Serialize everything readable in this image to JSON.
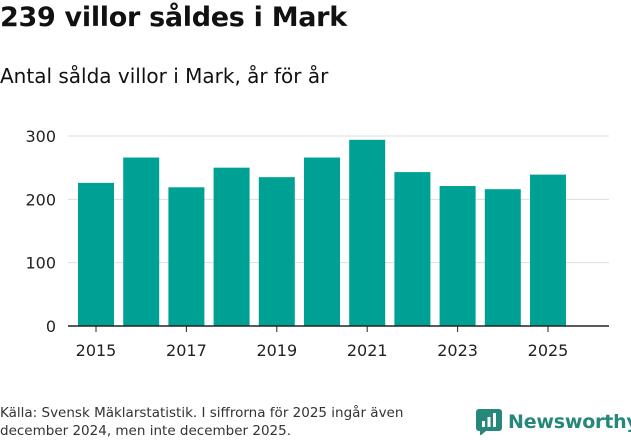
{
  "title": "239 villor såldes i Mark",
  "subtitle": "Antal sålda villor i Mark, år för år",
  "footer": {
    "source": "Källa: Svensk Mäklarstatistik. I siffrorna för 2025 ingår även december 2024, men inte december 2025."
  },
  "brand": {
    "name": "Newsworthy",
    "color": "#26877b"
  },
  "chart_data": {
    "type": "bar",
    "title": "239 villor såldes i Mark",
    "subtitle": "Antal sålda villor i Mark, år för år",
    "xlabel": "",
    "ylabel": "",
    "categories": [
      "2015",
      "2016",
      "2017",
      "2018",
      "2019",
      "2020",
      "2021",
      "2022",
      "2023",
      "2024",
      "2025"
    ],
    "x_tick_labels": [
      "2015",
      "2017",
      "2019",
      "2021",
      "2023",
      "2025"
    ],
    "values": [
      226,
      266,
      219,
      250,
      235,
      266,
      294,
      243,
      221,
      216,
      239
    ],
    "ylim": [
      0,
      300
    ],
    "y_ticks": [
      "0",
      "100",
      "200",
      "300"
    ],
    "grid": true,
    "bar_color": "#00a195"
  }
}
